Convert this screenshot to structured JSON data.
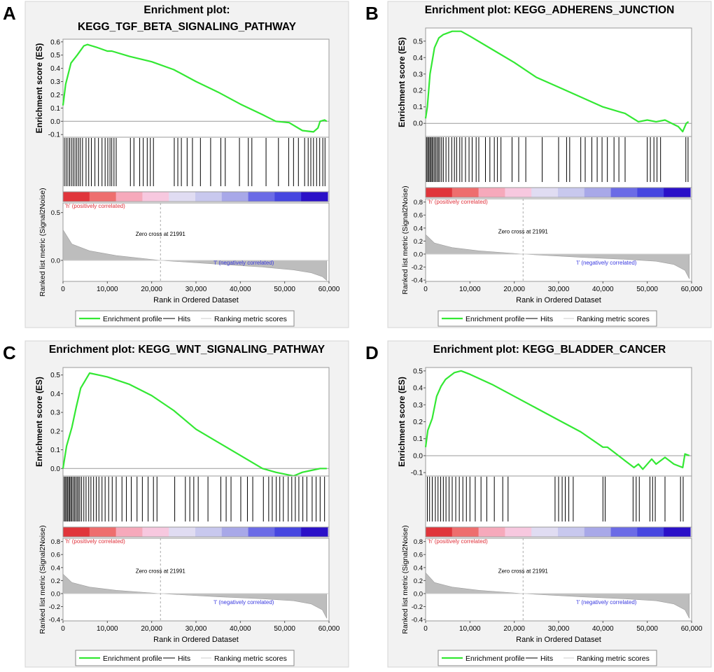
{
  "figure": {
    "x_axis_title": "Rank in Ordered Dataset",
    "es_axis_title": "Enrichment score (ES)",
    "metric_axis_title": "Ranked list metric (Signal2Noise)",
    "pos_label": "'h' (positively correlated)",
    "neg_label": "'l' (negatively correlated)",
    "zero_cross_label": "Zero cross at 21991",
    "legend": {
      "profile": "Enrichment profile",
      "hits": "Hits",
      "ranking": "Ranking metric scores"
    },
    "colors": {
      "profile": "#33e833",
      "hits": "#000000",
      "ranking": "#bdbdbd",
      "pos_text": "#e0303a",
      "neg_text": "#3a3ae0"
    },
    "heat_colors": [
      "#e0353b",
      "#ee6e6e",
      "#f6a9bb",
      "#f7c8df",
      "#e0dcf2",
      "#c8c8ee",
      "#a8a8e8",
      "#6b6be6",
      "#4646e0",
      "#2a10c8"
    ]
  },
  "chart_data": [
    {
      "panel_letter": "A",
      "type": "line",
      "title_lines": [
        "Enrichment plot:",
        "KEGG_TGF_BETA_SIGNALING_PATHWAY"
      ],
      "xlabel": "Rank in Ordered Dataset",
      "ylabel": "Enrichment score (ES)",
      "xlim": [
        0,
        60000
      ],
      "x_ticks": [
        "0",
        "10,000",
        "20,000",
        "30,000",
        "40,000",
        "50,000",
        "60,000"
      ],
      "es_ylim": [
        -0.12,
        0.62
      ],
      "es_ticks": [
        "0.6",
        "0.5",
        "0.4",
        "0.3",
        "0.2",
        "0.1",
        "0.0",
        "-0.1"
      ],
      "metric_ylim": [
        -0.22,
        0.6
      ],
      "metric_ticks": [
        "0.5",
        "0.0"
      ],
      "zero_cross": 21991,
      "enrichment_profile": [
        [
          0,
          0.12
        ],
        [
          600,
          0.28
        ],
        [
          1800,
          0.44
        ],
        [
          3200,
          0.5
        ],
        [
          4700,
          0.57
        ],
        [
          5500,
          0.58
        ],
        [
          7500,
          0.56
        ],
        [
          10000,
          0.53
        ],
        [
          11000,
          0.53
        ],
        [
          15000,
          0.49
        ],
        [
          20000,
          0.45
        ],
        [
          25000,
          0.39
        ],
        [
          30000,
          0.3
        ],
        [
          35000,
          0.22
        ],
        [
          40000,
          0.13
        ],
        [
          45000,
          0.05
        ],
        [
          48000,
          0.0
        ],
        [
          51000,
          -0.01
        ],
        [
          54000,
          -0.07
        ],
        [
          56500,
          -0.08
        ],
        [
          57500,
          -0.05
        ],
        [
          58000,
          0.0
        ],
        [
          59000,
          0.01
        ],
        [
          59500,
          0.0
        ]
      ],
      "hits": [
        300,
        700,
        1100,
        1500,
        1900,
        2300,
        2700,
        3100,
        3500,
        3900,
        4400,
        5200,
        5800,
        6400,
        7200,
        8000,
        8800,
        9500,
        10100,
        10600,
        11000,
        11500,
        12000,
        15200,
        16000,
        17300,
        18100,
        19000,
        19700,
        20400,
        25100,
        25900,
        26700,
        28000,
        29200,
        31000,
        33300,
        35600,
        36600,
        39800,
        41800,
        42600,
        45800,
        48600,
        50900,
        52000,
        53100,
        54500,
        55300,
        55900,
        56500,
        57200,
        57900,
        58600,
        59100
      ],
      "ranking_metric": [
        [
          0,
          0.32
        ],
        [
          2000,
          0.17
        ],
        [
          6000,
          0.1
        ],
        [
          12000,
          0.05
        ],
        [
          21991,
          0.0
        ],
        [
          35000,
          -0.04
        ],
        [
          45000,
          -0.07
        ],
        [
          52000,
          -0.1
        ],
        [
          56000,
          -0.13
        ],
        [
          58500,
          -0.17
        ],
        [
          59500,
          -0.21
        ]
      ]
    },
    {
      "panel_letter": "B",
      "type": "line",
      "title_lines": [
        "Enrichment plot: KEGG_ADHERENS_JUNCTION"
      ],
      "xlabel": "Rank in Ordered Dataset",
      "ylabel": "Enrichment score (ES)",
      "xlim": [
        0,
        60000
      ],
      "x_ticks": [
        "0",
        "10,000",
        "20,000",
        "30,000",
        "40,000",
        "50,000",
        "60,000"
      ],
      "es_ylim": [
        -0.08,
        0.58
      ],
      "es_ticks": [
        "0.5",
        "0.4",
        "0.3",
        "0.2",
        "0.1",
        "0.0"
      ],
      "metric_ylim": [
        -0.42,
        0.85
      ],
      "metric_ticks": [
        "0.8",
        "0.6",
        "0.4",
        "0.2",
        "0.0",
        "-0.2",
        "-0.4"
      ],
      "zero_cross": 21991,
      "enrichment_profile": [
        [
          0,
          0.03
        ],
        [
          400,
          0.1
        ],
        [
          1000,
          0.3
        ],
        [
          2000,
          0.46
        ],
        [
          3000,
          0.52
        ],
        [
          4000,
          0.54
        ],
        [
          6000,
          0.56
        ],
        [
          8000,
          0.56
        ],
        [
          10000,
          0.53
        ],
        [
          15000,
          0.45
        ],
        [
          20000,
          0.37
        ],
        [
          25000,
          0.28
        ],
        [
          30000,
          0.22
        ],
        [
          35000,
          0.16
        ],
        [
          40000,
          0.1
        ],
        [
          45000,
          0.06
        ],
        [
          48000,
          0.01
        ],
        [
          50000,
          0.02
        ],
        [
          52000,
          0.01
        ],
        [
          54000,
          0.02
        ],
        [
          57000,
          -0.02
        ],
        [
          58000,
          -0.05
        ],
        [
          58800,
          0.0
        ],
        [
          59300,
          0.01
        ]
      ],
      "hits": [
        200,
        450,
        700,
        950,
        1200,
        1450,
        1700,
        2000,
        2300,
        2600,
        2900,
        3200,
        3600,
        4000,
        4600,
        5200,
        5900,
        6500,
        7000,
        7700,
        8200,
        9000,
        9800,
        10500,
        11400,
        12000,
        13500,
        14500,
        15500,
        16200,
        17000,
        19500,
        21000,
        22600,
        26300,
        30000,
        31800,
        32500,
        35000,
        36000,
        37500,
        38700,
        39800,
        41000,
        42500,
        43600,
        45000,
        50000,
        50700,
        51500,
        52200,
        53000,
        58700,
        59200
      ],
      "ranking_metric": [
        [
          0,
          0.3
        ],
        [
          2000,
          0.17
        ],
        [
          6000,
          0.1
        ],
        [
          12000,
          0.05
        ],
        [
          21991,
          0.0
        ],
        [
          35000,
          -0.05
        ],
        [
          45000,
          -0.08
        ],
        [
          52000,
          -0.11
        ],
        [
          56000,
          -0.16
        ],
        [
          58500,
          -0.25
        ],
        [
          59500,
          -0.38
        ]
      ]
    },
    {
      "panel_letter": "C",
      "type": "line",
      "title_lines": [
        "Enrichment plot: KEGG_WNT_SIGNALING_PATHWAY"
      ],
      "xlabel": "Rank in Ordered Dataset",
      "ylabel": "Enrichment score (ES)",
      "xlim": [
        0,
        60000
      ],
      "x_ticks": [
        "0",
        "10,000",
        "20,000",
        "30,000",
        "40,000",
        "50,000",
        "60,000"
      ],
      "es_ylim": [
        -0.04,
        0.54
      ],
      "es_ticks": [
        "0.5",
        "0.4",
        "0.3",
        "0.2",
        "0.1",
        "0.0"
      ],
      "metric_ylim": [
        -0.42,
        0.85
      ],
      "metric_ticks": [
        "0.8",
        "0.6",
        "0.4",
        "0.2",
        "0.0",
        "-0.2",
        "-0.4"
      ],
      "zero_cross": 21991,
      "enrichment_profile": [
        [
          0,
          0.0
        ],
        [
          800,
          0.12
        ],
        [
          2000,
          0.22
        ],
        [
          3000,
          0.33
        ],
        [
          4000,
          0.43
        ],
        [
          5000,
          0.47
        ],
        [
          6000,
          0.51
        ],
        [
          8000,
          0.5
        ],
        [
          10000,
          0.49
        ],
        [
          15000,
          0.45
        ],
        [
          20000,
          0.39
        ],
        [
          25000,
          0.31
        ],
        [
          30000,
          0.21
        ],
        [
          35000,
          0.14
        ],
        [
          40000,
          0.07
        ],
        [
          45000,
          0.0
        ],
        [
          48000,
          -0.02
        ],
        [
          50000,
          -0.03
        ],
        [
          52000,
          -0.04
        ],
        [
          54000,
          -0.02
        ],
        [
          56000,
          -0.01
        ],
        [
          58000,
          0.0
        ],
        [
          59500,
          0.0
        ]
      ],
      "hits": [
        250,
        500,
        750,
        1000,
        1250,
        1500,
        1750,
        2000,
        2300,
        2600,
        2900,
        3200,
        3500,
        3800,
        4200,
        4700,
        5200,
        5800,
        6300,
        6900,
        7500,
        8100,
        8800,
        9500,
        10300,
        11100,
        12000,
        13300,
        14300,
        15400,
        16700,
        17900,
        19200,
        20400,
        21200,
        25200,
        27600,
        28600,
        29500,
        30500,
        32700,
        35600,
        36800,
        37900,
        40100,
        41600,
        42800,
        45200,
        46400,
        47200,
        48100,
        48900,
        49700,
        50800,
        51600,
        52400,
        53200,
        54100,
        55000,
        56200,
        57100,
        58000,
        59000
      ],
      "ranking_metric": [
        [
          0,
          0.3
        ],
        [
          2000,
          0.17
        ],
        [
          6000,
          0.1
        ],
        [
          12000,
          0.05
        ],
        [
          21991,
          0.0
        ],
        [
          35000,
          -0.05
        ],
        [
          45000,
          -0.08
        ],
        [
          52000,
          -0.11
        ],
        [
          56000,
          -0.16
        ],
        [
          58500,
          -0.25
        ],
        [
          59500,
          -0.38
        ]
      ]
    },
    {
      "panel_letter": "D",
      "type": "line",
      "title_lines": [
        "Enrichment plot: KEGG_BLADDER_CANCER"
      ],
      "xlabel": "Rank in Ordered Dataset",
      "ylabel": "Enrichment score (ES)",
      "xlim": [
        0,
        60000
      ],
      "x_ticks": [
        "0",
        "10,000",
        "20,000",
        "30,000",
        "40,000",
        "50,000",
        "60,000"
      ],
      "es_ylim": [
        -0.12,
        0.52
      ],
      "es_ticks": [
        "0.5",
        "0.4",
        "0.3",
        "0.2",
        "0.1",
        "0.0",
        "-0.1"
      ],
      "metric_ylim": [
        -0.42,
        0.85
      ],
      "metric_ticks": [
        "0.8",
        "0.6",
        "0.4",
        "0.2",
        "0.0",
        "-0.2",
        "-0.4"
      ],
      "zero_cross": 21991,
      "enrichment_profile": [
        [
          0,
          0.05
        ],
        [
          500,
          0.15
        ],
        [
          1500,
          0.22
        ],
        [
          2500,
          0.35
        ],
        [
          3500,
          0.41
        ],
        [
          4500,
          0.45
        ],
        [
          5500,
          0.47
        ],
        [
          6500,
          0.49
        ],
        [
          8000,
          0.5
        ],
        [
          10000,
          0.48
        ],
        [
          15000,
          0.42
        ],
        [
          20000,
          0.35
        ],
        [
          25000,
          0.28
        ],
        [
          30000,
          0.21
        ],
        [
          35000,
          0.14
        ],
        [
          40000,
          0.05
        ],
        [
          41000,
          0.05
        ],
        [
          45000,
          -0.03
        ],
        [
          47000,
          -0.07
        ],
        [
          48000,
          -0.05
        ],
        [
          49000,
          -0.08
        ],
        [
          51000,
          -0.02
        ],
        [
          52000,
          -0.05
        ],
        [
          54000,
          -0.01
        ],
        [
          56000,
          -0.05
        ],
        [
          58000,
          -0.07
        ],
        [
          58500,
          0.01
        ],
        [
          59500,
          0.0
        ]
      ],
      "hits": [
        400,
        900,
        1500,
        2200,
        2800,
        3400,
        4000,
        4600,
        5300,
        6000,
        6800,
        7600,
        8400,
        9200,
        10000,
        11200,
        12500,
        13800,
        15500,
        17400,
        18600,
        29200,
        30000,
        30800,
        31500,
        32300,
        33300,
        40000,
        40500,
        46800,
        47500,
        48200,
        50600,
        51200,
        51800,
        54000,
        57500,
        58100
      ],
      "ranking_metric": [
        [
          0,
          0.32
        ],
        [
          2000,
          0.17
        ],
        [
          6000,
          0.1
        ],
        [
          12000,
          0.05
        ],
        [
          21991,
          0.0
        ],
        [
          35000,
          -0.05
        ],
        [
          45000,
          -0.08
        ],
        [
          52000,
          -0.11
        ],
        [
          56000,
          -0.16
        ],
        [
          58500,
          -0.25
        ],
        [
          59500,
          -0.38
        ]
      ]
    }
  ]
}
